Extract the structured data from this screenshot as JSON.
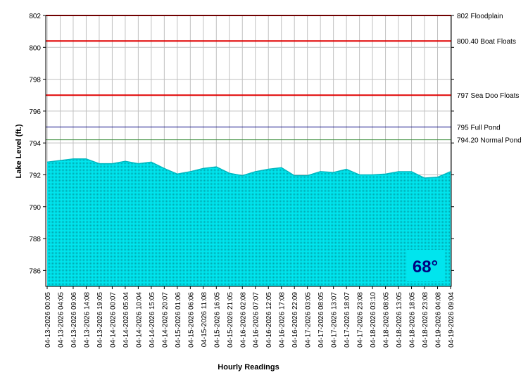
{
  "chart_data": {
    "type": "area",
    "y_label": "Lake Level (ft.)",
    "x_label": "Hourly Readings",
    "categories": [
      "04-13-2026 00:05",
      "04-13-2026 04:05",
      "04-13-2026 09:06",
      "04-13-2026 14:08",
      "04-13-2026 19:05",
      "04-14-2026 00:07",
      "04-14-2026 05:04",
      "04-14-2026 10:04",
      "04-14-2026 15:05",
      "04-14-2026 20:07",
      "04-15-2026 01:06",
      "04-15-2026 06:06",
      "04-15-2026 11:08",
      "04-15-2026 16:05",
      "04-15-2026 21:05",
      "04-16-2026 02:08",
      "04-16-2026 07:07",
      "04-16-2026 12:05",
      "04-16-2026 17:08",
      "04-16-2026 22:09",
      "04-17-2026 03:05",
      "04-17-2026 08:05",
      "04-17-2026 13:07",
      "04-17-2026 18:07",
      "04-17-2026 23:08",
      "04-18-2026 03:10",
      "04-18-2026 08:05",
      "04-18-2026 13:05",
      "04-18-2026 18:05",
      "04-18-2026 23:08",
      "04-19-2026 04:08",
      "04-19-2026 09:04"
    ],
    "values": [
      792.8,
      792.9,
      793.0,
      793.0,
      792.7,
      792.7,
      792.85,
      792.7,
      792.8,
      792.4,
      792.05,
      792.2,
      792.4,
      792.5,
      792.1,
      791.95,
      792.2,
      792.35,
      792.45,
      791.95,
      791.95,
      792.2,
      792.15,
      792.35,
      792.0,
      792.0,
      792.05,
      792.2,
      792.2,
      791.8,
      791.85,
      792.2
    ],
    "color": "#00e5ee",
    "ylim": [
      785,
      802
    ],
    "yticks": [
      786,
      788,
      790,
      792,
      794,
      796,
      798,
      800,
      802
    ],
    "grid": true,
    "reference_lines": [
      {
        "value": 802,
        "label": "802 Floodplain",
        "color": "#e00000"
      },
      {
        "value": 800.4,
        "label": "800.40 Boat Floats",
        "color": "#e00000"
      },
      {
        "value": 797,
        "label": "797 Sea Doo Floats",
        "color": "#e00000"
      },
      {
        "value": 795,
        "label": "795 Full Pond",
        "color": "#000080"
      },
      {
        "value": 794.2,
        "label": "794.20 Normal Pond",
        "color": "#409040"
      }
    ],
    "annotation": "68°"
  }
}
